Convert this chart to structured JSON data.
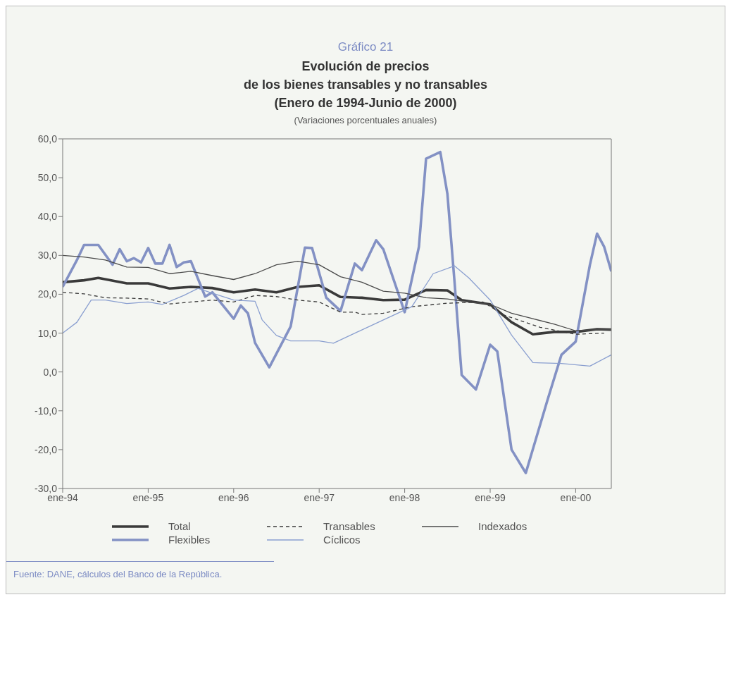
{
  "chart_data": {
    "type": "line",
    "title": "Evolución de precios\nde los bienes transables y no transables\n(Enero de 1994-Junio de 2000)",
    "subtitle": "(Variaciones porcentuales anuales)",
    "annotations": [
      "Gráfico 21",
      "Fuente: DANE, cálculos del Banco de la República."
    ],
    "xlim": [
      "1994-01",
      "2000-06"
    ],
    "xticks": [
      {
        "value": "1994-01",
        "label": "ene-94"
      },
      {
        "value": "1995-01",
        "label": "ene-95"
      },
      {
        "value": "1996-01",
        "label": "ene-96"
      },
      {
        "value": "1997-01",
        "label": "ene-97"
      },
      {
        "value": "1998-01",
        "label": "ene-98"
      },
      {
        "value": "1999-01",
        "label": "ene-99"
      },
      {
        "value": "2000-01",
        "label": "ene-00"
      }
    ],
    "ylim": [
      -30,
      60
    ],
    "yticks": [
      {
        "value": -30,
        "label": "-30,0"
      },
      {
        "value": -20,
        "label": "-20,0"
      },
      {
        "value": -10,
        "label": "-10,0"
      },
      {
        "value": 0,
        "label": "0,0"
      },
      {
        "value": 10,
        "label": "10,0"
      },
      {
        "value": 20,
        "label": "20,0"
      },
      {
        "value": 30,
        "label": "30,0"
      },
      {
        "value": 40,
        "label": "40,0"
      },
      {
        "value": 50,
        "label": "50,0"
      },
      {
        "value": 60,
        "label": "60,0"
      }
    ],
    "grid": false,
    "legend": "bottom",
    "marker": "none",
    "series": [
      {
        "name": "Total",
        "color": "#3a3a3a",
        "line_style": "solid",
        "x": [
          "1994-01",
          "1994-04",
          "1994-06",
          "1994-10",
          "1995-01",
          "1995-04",
          "1995-07",
          "1995-10",
          "1996-01",
          "1996-04",
          "1996-07",
          "1996-10",
          "1997-01",
          "1997-04",
          "1997-07",
          "1997-10",
          "1998-01",
          "1998-04",
          "1998-07",
          "1998-09",
          "1999-01",
          "1999-04",
          "1999-07",
          "1999-10",
          "2000-01",
          "2000-04",
          "2000-06"
        ],
        "values": [
          23.1,
          23.6,
          24.2,
          22.8,
          22.8,
          21.5,
          21.9,
          21.6,
          20.5,
          21.2,
          20.5,
          21.9,
          22.3,
          19.3,
          19.1,
          18.5,
          18.6,
          21.1,
          21.0,
          18.5,
          17.4,
          12.8,
          9.7,
          10.3,
          10.3,
          11.0,
          10.9
        ]
      },
      {
        "name": "Flexibles",
        "color": "#8391c4",
        "line_style": "solid",
        "x": [
          "1994-01",
          "1994-03",
          "1994-04",
          "1994-06",
          "1994-08",
          "1994-09",
          "1994-10",
          "1994-11",
          "1994-12",
          "1995-01",
          "1995-02",
          "1995-03",
          "1995-04",
          "1995-05",
          "1995-06",
          "1995-07",
          "1995-09",
          "1995-10",
          "1996-01",
          "1996-02",
          "1996-03",
          "1996-04",
          "1996-06",
          "1996-09",
          "1996-11",
          "1996-12",
          "1997-02",
          "1997-04",
          "1997-06",
          "1997-07",
          "1997-09",
          "1997-10",
          "1998-01",
          "1998-03",
          "1998-04",
          "1998-06",
          "1998-07",
          "1998-08",
          "1998-09",
          "1998-11",
          "1999-01",
          "1999-02",
          "1999-04",
          "1999-06",
          "1999-09",
          "1999-11",
          "2000-01",
          "2000-03",
          "2000-04",
          "2000-05",
          "2000-06"
        ],
        "values": [
          21.9,
          28.8,
          32.7,
          32.7,
          27.6,
          31.6,
          28.5,
          29.3,
          28.2,
          31.9,
          27.9,
          27.9,
          32.7,
          27.0,
          28.2,
          28.5,
          19.4,
          20.5,
          13.7,
          17.1,
          15.1,
          7.5,
          1.2,
          11.7,
          32.0,
          31.9,
          19.1,
          15.7,
          27.9,
          26.2,
          33.9,
          31.6,
          15.4,
          32.2,
          54.9,
          56.6,
          45.8,
          23.1,
          -0.8,
          -4.5,
          7.0,
          5.3,
          -20.0,
          -26.0,
          -7.5,
          4.4,
          7.8,
          27.6,
          35.6,
          32.2,
          25.9
        ]
      },
      {
        "name": "Transables",
        "color": "#3a3a3a",
        "line_style": "dashed",
        "x": [
          "1994-01",
          "1994-04",
          "1994-07",
          "1994-10",
          "1995-01",
          "1995-04",
          "1995-07",
          "1995-10",
          "1996-01",
          "1996-04",
          "1996-07",
          "1996-10",
          "1997-01",
          "1997-04",
          "1997-06",
          "1997-07",
          "1997-10",
          "1998-02",
          "1998-07",
          "1998-12",
          "1999-03",
          "1999-08",
          "2000-01",
          "2000-05"
        ],
        "values": [
          20.5,
          20.1,
          19.1,
          19.0,
          18.8,
          17.5,
          18.0,
          18.5,
          18.0,
          19.7,
          19.4,
          18.5,
          18.0,
          15.4,
          15.4,
          14.8,
          15.1,
          16.8,
          17.7,
          18.0,
          14.6,
          11.5,
          9.7,
          10.0
        ]
      },
      {
        "name": "Cíclicos",
        "color": "#8a9fd0",
        "line_style": "solid",
        "x": [
          "1994-01",
          "1994-03",
          "1994-05",
          "1994-07",
          "1994-10",
          "1995-01",
          "1995-03",
          "1995-06",
          "1995-08",
          "1995-10",
          "1996-01",
          "1996-04",
          "1996-05",
          "1996-07",
          "1996-09",
          "1997-01",
          "1997-03",
          "1997-10",
          "1998-02",
          "1998-05",
          "1998-08",
          "1998-10",
          "1999-01",
          "1999-04",
          "1999-07",
          "1999-11",
          "2000-03",
          "2000-06"
        ],
        "values": [
          10.0,
          12.8,
          18.5,
          18.5,
          17.6,
          18.0,
          17.4,
          19.7,
          21.5,
          20.3,
          18.5,
          18.2,
          13.4,
          9.4,
          8.0,
          8.0,
          7.4,
          13.4,
          16.8,
          25.3,
          27.3,
          24.2,
          18.5,
          9.5,
          2.4,
          2.2,
          1.5,
          4.4
        ]
      },
      {
        "name": "Indexados",
        "color": "#4a4a4a",
        "line_style": "solid",
        "x": [
          "1994-01",
          "1994-04",
          "1994-07",
          "1994-10",
          "1995-01",
          "1995-04",
          "1995-07",
          "1995-10",
          "1996-01",
          "1996-04",
          "1996-07",
          "1996-10",
          "1997-01",
          "1997-04",
          "1997-07",
          "1997-10",
          "1998-01",
          "1998-04",
          "1998-07",
          "1998-10",
          "1999-01",
          "1999-04",
          "1999-07",
          "1999-10",
          "2000-01",
          "2000-04",
          "2000-06"
        ],
        "values": [
          30.0,
          29.6,
          28.8,
          27.0,
          26.9,
          25.3,
          25.9,
          24.8,
          23.8,
          25.3,
          27.6,
          28.5,
          27.6,
          24.5,
          23.1,
          20.8,
          20.3,
          19.1,
          18.8,
          18.0,
          17.4,
          15.1,
          13.7,
          12.3,
          10.6,
          10.9,
          10.9
        ]
      }
    ]
  }
}
